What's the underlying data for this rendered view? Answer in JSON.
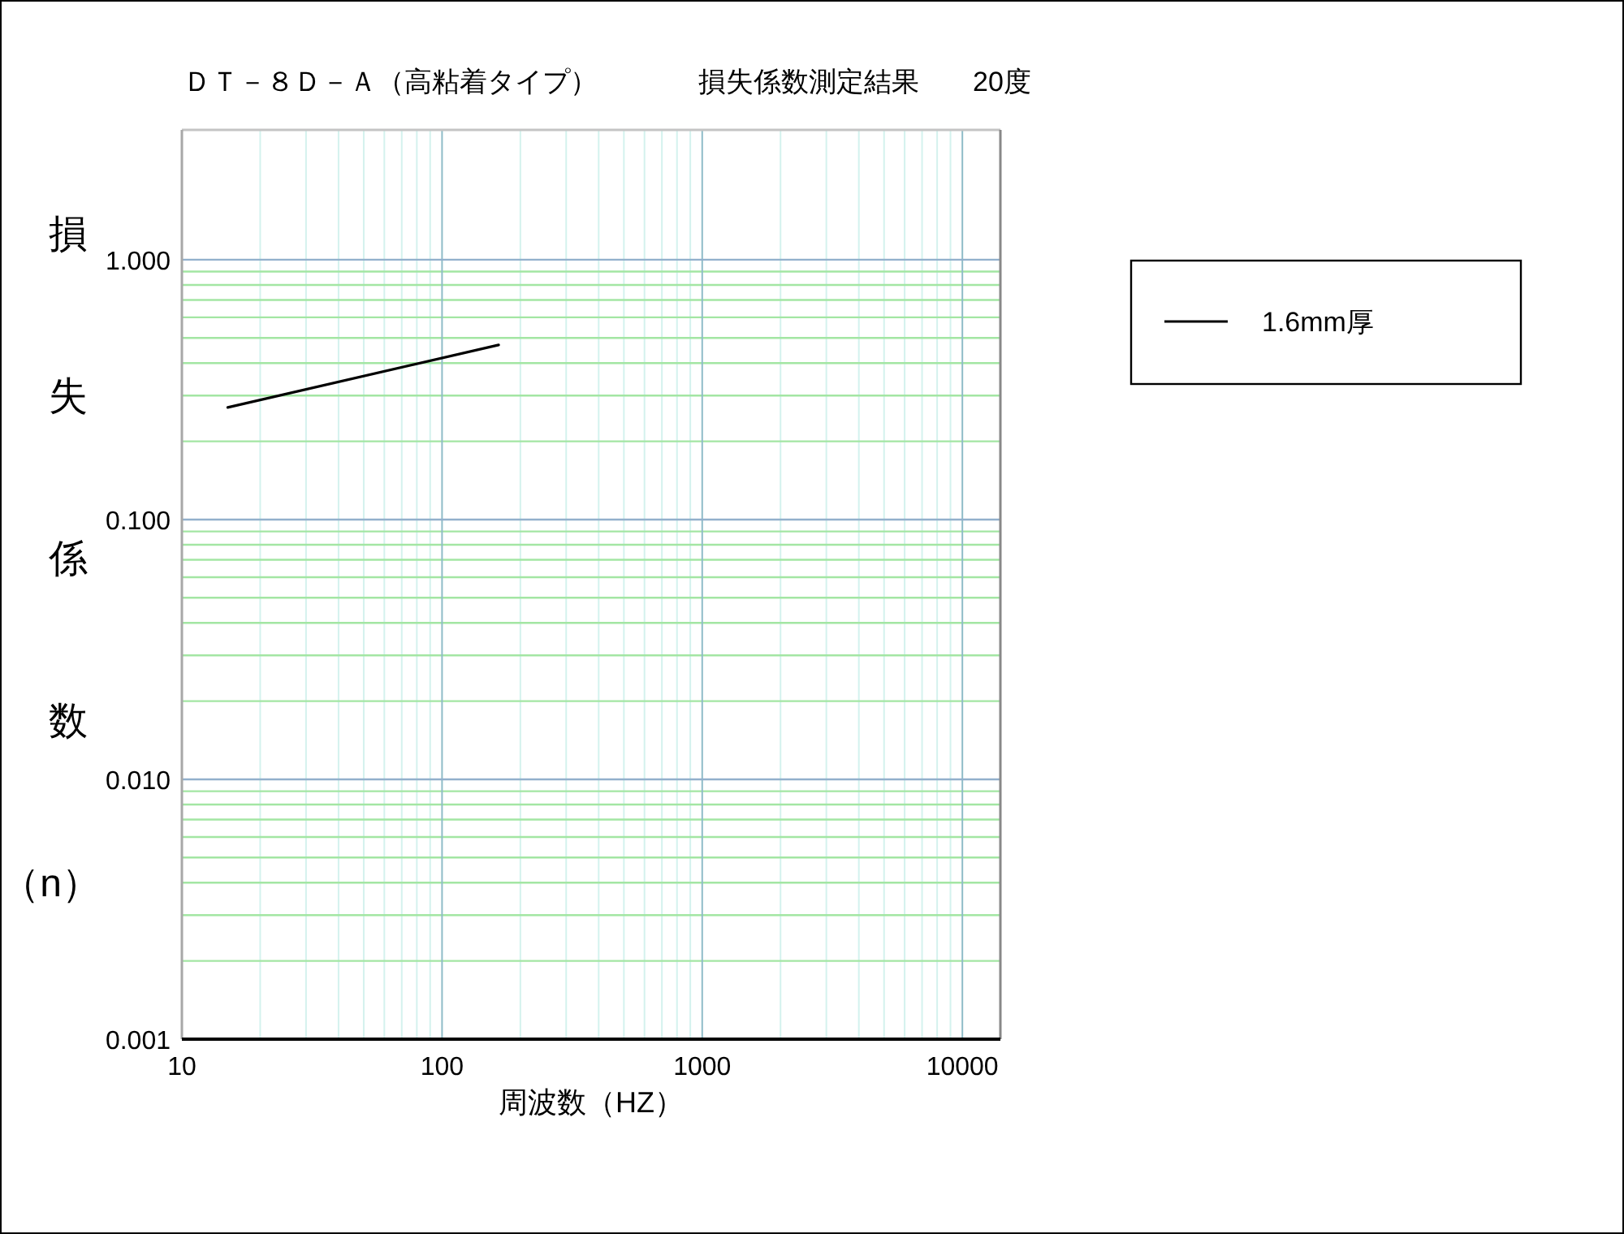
{
  "chart_data": {
    "type": "line",
    "title": "ＤＴ－８Ｄ－Ａ（高粘着タイプ）",
    "subtitle": "損失係数測定結果",
    "annotations": [
      "20度"
    ],
    "xlabel": "周波数（HZ）",
    "ylabel": "損失係数（n）",
    "log": "xy",
    "xlim": [
      10,
      14000
    ],
    "ylim": [
      0.001,
      3.16
    ],
    "xticks": [
      10,
      {
        "value": 20,
        "label": null
      },
      {
        "value": 30,
        "label": null
      },
      {
        "value": 40,
        "label": null
      },
      {
        "value": 50,
        "label": null
      },
      {
        "value": 60,
        "label": null
      },
      {
        "value": 70,
        "label": null
      },
      {
        "value": 80,
        "label": null
      },
      {
        "value": 90,
        "label": null
      },
      100,
      {
        "value": 200,
        "label": null
      },
      {
        "value": 300,
        "label": null
      },
      {
        "value": 400,
        "label": null
      },
      {
        "value": 500,
        "label": null
      },
      {
        "value": 600,
        "label": null
      },
      {
        "value": 700,
        "label": null
      },
      {
        "value": 800,
        "label": null
      },
      {
        "value": 900,
        "label": null
      },
      1000,
      {
        "value": 2000,
        "label": null
      },
      {
        "value": 3000,
        "label": null
      },
      {
        "value": 4000,
        "label": null
      },
      {
        "value": 5000,
        "label": null
      },
      {
        "value": 6000,
        "label": null
      },
      {
        "value": 7000,
        "label": null
      },
      {
        "value": 8000,
        "label": null
      },
      {
        "value": 9000,
        "label": null
      },
      10000
    ],
    "yticks": [
      {
        "value": 0.001,
        "label": "0.001"
      },
      {
        "value": 0.002,
        "label": null
      },
      {
        "value": 0.003,
        "label": null
      },
      {
        "value": 0.004,
        "label": null
      },
      {
        "value": 0.005,
        "label": null
      },
      {
        "value": 0.006,
        "label": null
      },
      {
        "value": 0.007,
        "label": null
      },
      {
        "value": 0.008,
        "label": null
      },
      {
        "value": 0.009,
        "label": null
      },
      {
        "value": 0.01,
        "label": "0.010"
      },
      {
        "value": 0.02,
        "label": null
      },
      {
        "value": 0.03,
        "label": null
      },
      {
        "value": 0.04,
        "label": null
      },
      {
        "value": 0.05,
        "label": null
      },
      {
        "value": 0.06,
        "label": null
      },
      {
        "value": 0.07,
        "label": null
      },
      {
        "value": 0.08,
        "label": null
      },
      {
        "value": 0.09,
        "label": null
      },
      {
        "value": 0.1,
        "label": "0.100"
      },
      {
        "value": 0.2,
        "label": null
      },
      {
        "value": 0.3,
        "label": null
      },
      {
        "value": 0.4,
        "label": null
      },
      {
        "value": 0.5,
        "label": null
      },
      {
        "value": 0.6,
        "label": null
      },
      {
        "value": 0.7,
        "label": null
      },
      {
        "value": 0.8,
        "label": null
      },
      {
        "value": 0.9,
        "label": null
      },
      {
        "value": 1,
        "label": "1.000"
      }
    ],
    "grid": true,
    "legend": "right",
    "line_style": "solid",
    "series": [
      {
        "name": "1.6mm厚",
        "color": "#000000",
        "x": [
          15,
          165
        ],
        "values": [
          0.27,
          0.47
        ]
      }
    ]
  }
}
